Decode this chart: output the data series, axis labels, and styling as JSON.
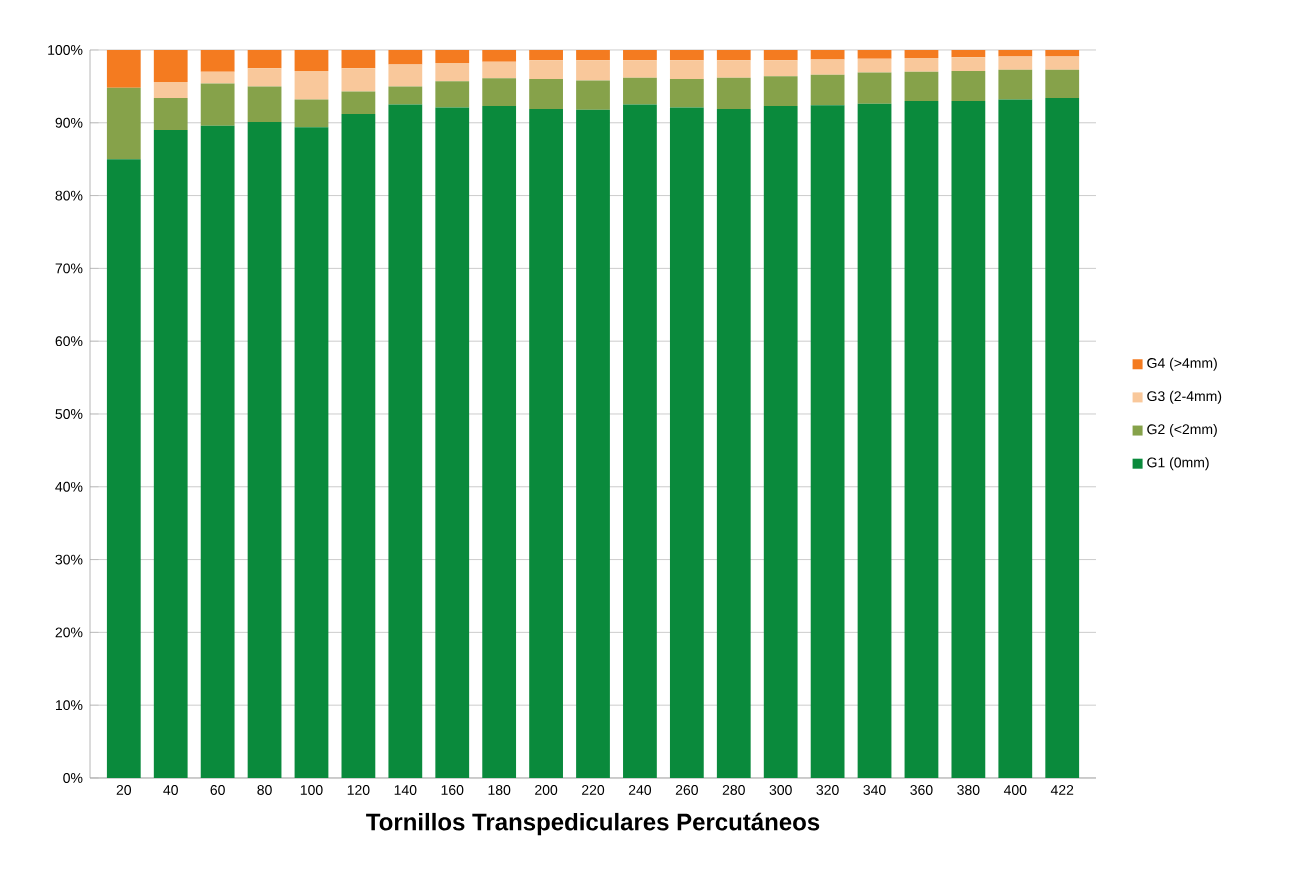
{
  "chart_data": {
    "type": "bar",
    "stacked": true,
    "xlabel": "Tornillos Transpediculares Percutáneos",
    "categories": [
      "20",
      "40",
      "60",
      "80",
      "100",
      "120",
      "140",
      "160",
      "180",
      "200",
      "220",
      "240",
      "260",
      "280",
      "300",
      "320",
      "340",
      "360",
      "380",
      "400",
      "422"
    ],
    "series": [
      {
        "name": "G1 (0mm)",
        "color": "#0a8a3c",
        "values": [
          85,
          89,
          89.6,
          90.1,
          89.4,
          91.2,
          92.5,
          92.1,
          92.3,
          91.9,
          91.8,
          92.5,
          92.1,
          91.9,
          92.3,
          92.4,
          92.6,
          93.0,
          93.0,
          93.2,
          93.4
        ]
      },
      {
        "name": "G2 (<2mm)",
        "color": "#86a24a",
        "values": [
          9.8,
          4.4,
          5.8,
          4.9,
          3.8,
          3.1,
          2.5,
          3.6,
          3.8,
          4.1,
          4.0,
          3.7,
          3.9,
          4.3,
          4.1,
          4.2,
          4.3,
          4.0,
          4.1,
          4.1,
          3.9
        ]
      },
      {
        "name": "G3 (2-4mm)",
        "color": "#f9c89b",
        "values": [
          0,
          2.2,
          1.6,
          2.5,
          3.9,
          3.2,
          3.0,
          2.5,
          2.3,
          2.6,
          2.8,
          2.4,
          2.6,
          2.4,
          2.2,
          2.1,
          1.9,
          1.9,
          1.9,
          1.8,
          1.8
        ]
      },
      {
        "name": "G4 (>4mm)",
        "color": "#f47b20",
        "values": [
          5.2,
          4.4,
          3.0,
          2.5,
          2.9,
          2.5,
          2.0,
          1.8,
          1.6,
          1.4,
          1.4,
          1.4,
          1.4,
          1.4,
          1.4,
          1.3,
          1.2,
          1.1,
          1.0,
          0.9,
          0.9
        ]
      }
    ],
    "ylim": [
      0,
      100
    ],
    "yticks": [
      {
        "value": 0,
        "label": "0%"
      },
      {
        "value": 10,
        "label": "10%"
      },
      {
        "value": 20,
        "label": "20%"
      },
      {
        "value": 30,
        "label": "30%"
      },
      {
        "value": 40,
        "label": "40%"
      },
      {
        "value": 50,
        "label": "50%"
      },
      {
        "value": 60,
        "label": "60%"
      },
      {
        "value": 70,
        "label": "70%"
      },
      {
        "value": 80,
        "label": "80%"
      },
      {
        "value": 90,
        "label": "90%"
      },
      {
        "value": 100,
        "label": "100%"
      }
    ],
    "grid": "y",
    "legend": "right"
  }
}
